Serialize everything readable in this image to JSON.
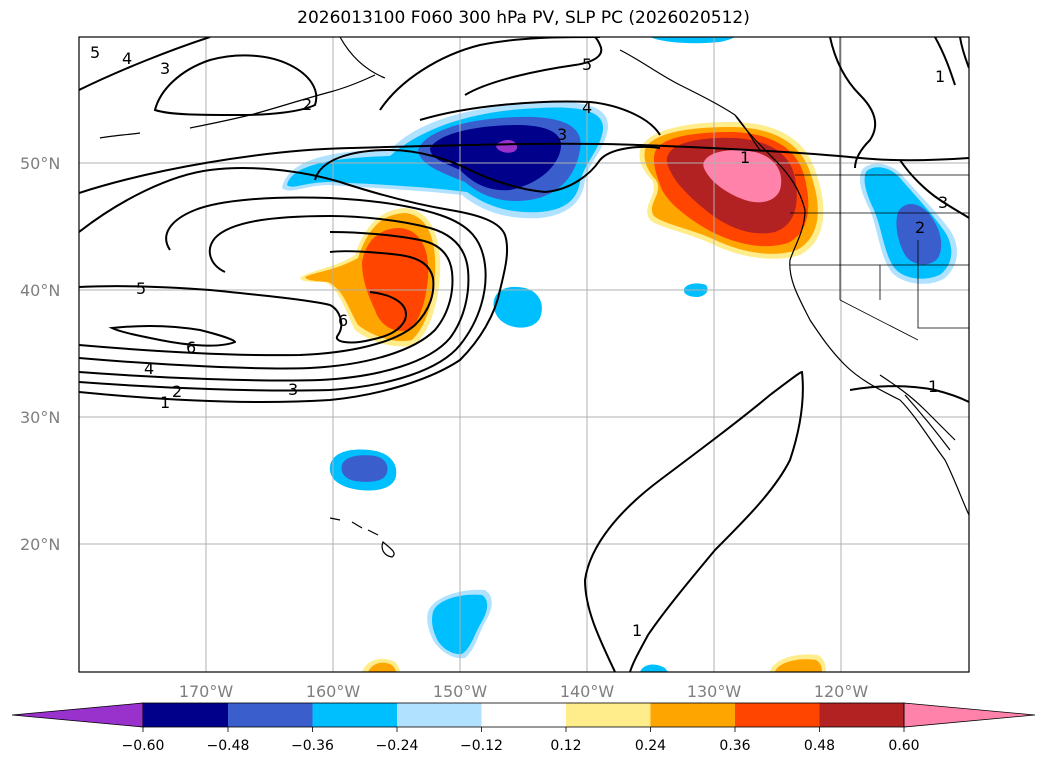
{
  "map": {
    "title": "2026013100 F060 300 hPa PV, SLP PC (2026020512)",
    "latitude_labels": [
      "50°N",
      "40°N",
      "30°N",
      "20°N"
    ],
    "longitude_labels": [
      "170°W",
      "160°W",
      "150°W",
      "140°W",
      "130°W",
      "120°W"
    ],
    "colorbar": {
      "tick_labels": [
        "−0.60",
        "−0.48",
        "−0.36",
        "−0.24",
        "−0.12",
        "0.12",
        "0.24",
        "0.36",
        "0.48",
        "0.60"
      ],
      "colors": [
        "#9932cc",
        "#00008b",
        "#3a5fcd",
        "#00bfff",
        "#b0e2ff",
        "#ffffff",
        "#ffec8b",
        "#ffa500",
        "#ff4500",
        "#b22222",
        "#ff82ab"
      ]
    },
    "contour_labels": [
      "5",
      "4",
      "3",
      "2",
      "5",
      "4",
      "3",
      "1",
      "5",
      "6",
      "6",
      "4",
      "2",
      "1",
      "3",
      "2",
      "3",
      "1",
      "1",
      "1"
    ]
  }
}
